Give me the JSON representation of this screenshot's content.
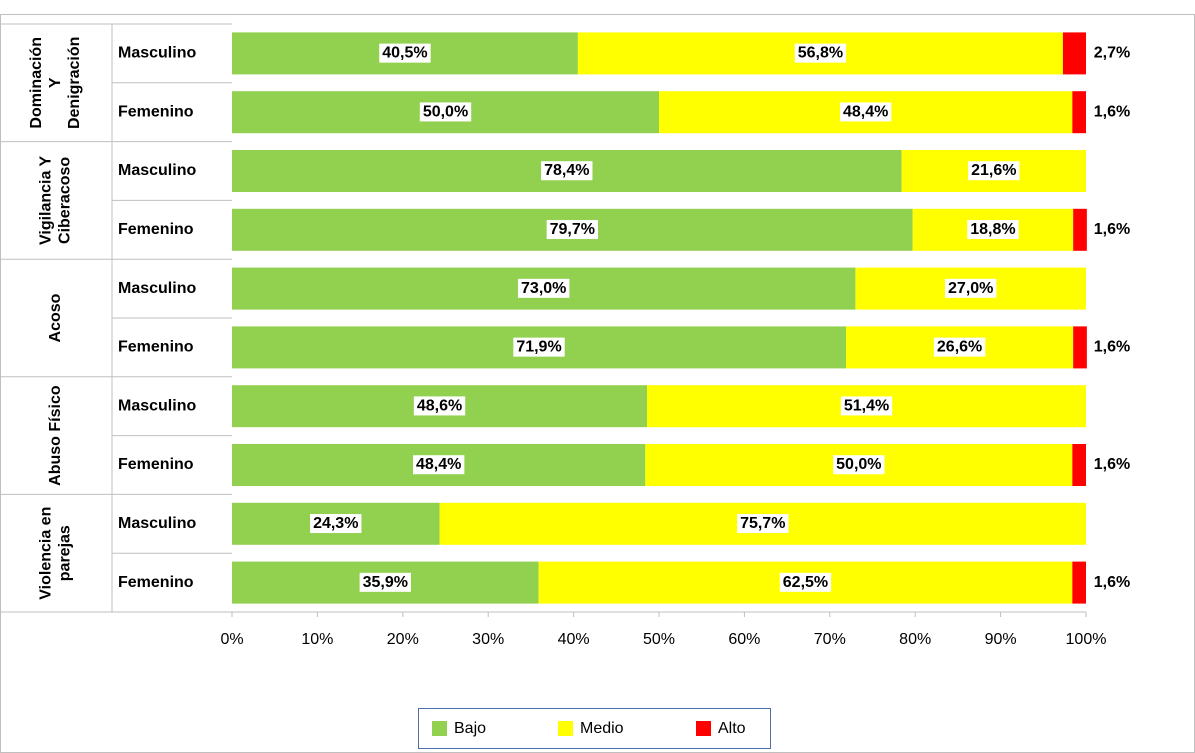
{
  "chart_data": {
    "type": "stacked_bar_horizontal",
    "groups": [
      [
        "Dominación",
        "Y",
        "Denigración"
      ],
      [
        "Vigilancia Y",
        "Ciberacoso"
      ],
      [
        "Acoso"
      ],
      [
        "Abuso Físico"
      ],
      [
        "Violencia en",
        "parejas"
      ]
    ],
    "categories": [
      "Masculino",
      "Femenino",
      "Masculino",
      "Femenino",
      "Masculino",
      "Femenino",
      "Masculino",
      "Femenino",
      "Masculino",
      "Femenino"
    ],
    "series": [
      {
        "name": "Bajo",
        "color": "#92d050",
        "values": [
          40.5,
          50.0,
          78.4,
          79.7,
          73.0,
          71.9,
          48.6,
          48.4,
          24.3,
          35.9
        ],
        "value_labels": [
          "40,5%",
          "50,0%",
          "78,4%",
          "79,7%",
          "73,0%",
          "71,9%",
          "48,6%",
          "48,4%",
          "24,3%",
          "35,9%"
        ]
      },
      {
        "name": "Medio",
        "color": "#ffff00",
        "values": [
          56.8,
          48.4,
          21.6,
          18.8,
          27.0,
          26.6,
          51.4,
          50.0,
          75.7,
          62.5
        ],
        "value_labels": [
          "56,8%",
          "48,4%",
          "21,6%",
          "18,8%",
          "27,0%",
          "26,6%",
          "51,4%",
          "50,0%",
          "75,7%",
          "62,5%"
        ]
      },
      {
        "name": "Alto",
        "color": "#ff0000",
        "values": [
          2.7,
          1.6,
          null,
          1.6,
          null,
          1.6,
          null,
          1.6,
          null,
          1.6
        ],
        "value_labels": [
          "2,7%",
          "1,6%",
          null,
          "1,6%",
          null,
          "1,6%",
          null,
          "1,6%",
          null,
          "1,6%"
        ]
      }
    ],
    "xlim": [
      0,
      100
    ],
    "xticks": [
      {
        "value": 0,
        "label": "0%"
      },
      {
        "value": 10,
        "label": "10%"
      },
      {
        "value": 20,
        "label": "20%"
      },
      {
        "value": 30,
        "label": "30%"
      },
      {
        "value": 40,
        "label": "40%"
      },
      {
        "value": 50,
        "label": "50%"
      },
      {
        "value": 60,
        "label": "60%"
      },
      {
        "value": 70,
        "label": "70%"
      },
      {
        "value": 80,
        "label": "80%"
      },
      {
        "value": 90,
        "label": "90%"
      },
      {
        "value": 100,
        "label": "100%"
      }
    ],
    "legend": "bottom"
  }
}
